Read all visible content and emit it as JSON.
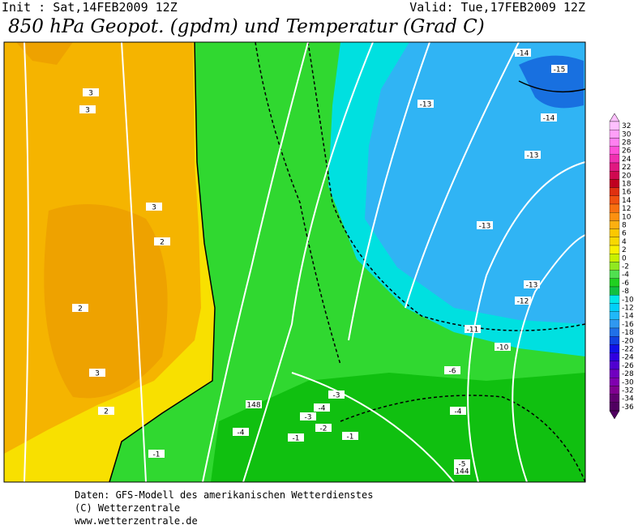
{
  "header": {
    "init": "Init : Sat,14FEB2009 12Z",
    "valid": "Valid: Tue,17FEB2009 12Z",
    "title": "850 hPa Geopot. (gpdm) und Temperatur (Grad C)"
  },
  "map": {
    "contour_labels": [
      3,
      3,
      3,
      2,
      2,
      3,
      2,
      -1,
      148,
      -4,
      -3,
      -4,
      -3,
      -2,
      -1,
      -1,
      -6,
      -4,
      -5,
      144,
      -10,
      -11,
      -12,
      -13,
      -13,
      -13,
      -14,
      -13,
      -14,
      -15
    ]
  },
  "colorbar": {
    "labels": [
      32,
      30,
      28,
      26,
      24,
      22,
      20,
      18,
      16,
      14,
      12,
      10,
      8,
      6,
      4,
      2,
      0,
      -2,
      -4,
      -6,
      -8,
      -10,
      -12,
      -14,
      -16,
      -18,
      -20,
      -22,
      -24,
      -26,
      -28,
      -30,
      -32,
      -34,
      -36
    ],
    "colors": [
      "#ffc0ff",
      "#ffa0f8",
      "#ff80f0",
      "#ff50d8",
      "#f030b0",
      "#e01880",
      "#d00850",
      "#c00020",
      "#e03010",
      "#f05010",
      "#f87010",
      "#fc9010",
      "#fcb010",
      "#fcc800",
      "#f8d800",
      "#f8f000",
      "#c8f000",
      "#90e820",
      "#50e050",
      "#20d020",
      "#10c040",
      "#00e8e8",
      "#00d0f8",
      "#20b8f8",
      "#3098f0",
      "#2070e8",
      "#1040e0",
      "#1010e8",
      "#3000e0",
      "#5000d0",
      "#7000c0",
      "#8000b0",
      "#800090",
      "#600070",
      "#500060"
    ]
  },
  "footer": {
    "line1": "Daten: GFS-Modell des amerikanischen Wetterdienstes",
    "line2": "(C) Wetterzentrale",
    "line3": "www.wetterzentrale.de"
  }
}
